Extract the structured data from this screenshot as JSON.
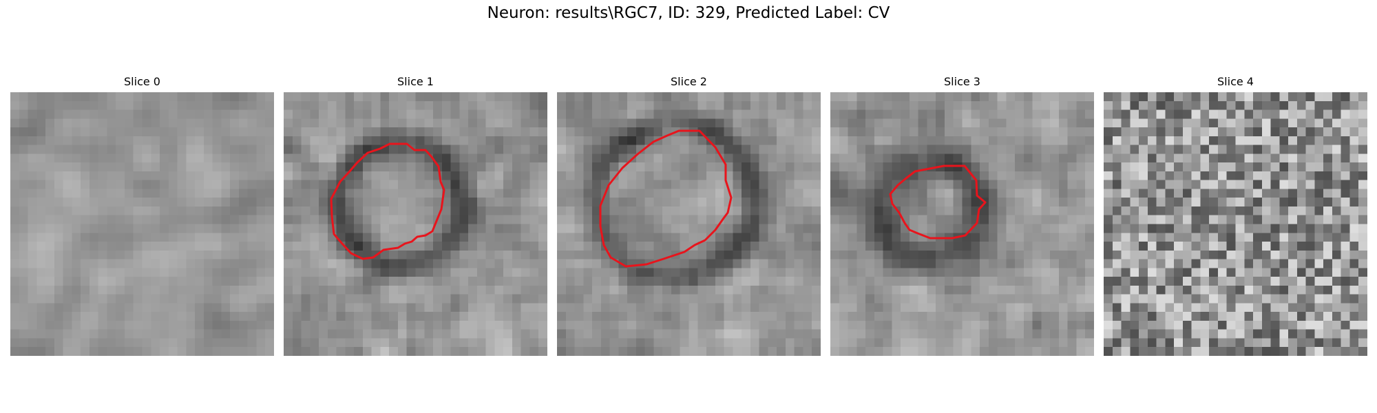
{
  "figure": {
    "title": "Neuron: results\\RGC7, ID: 329, Predicted Label: CV"
  },
  "colors": {
    "contour": "#e8141c",
    "background": "#ffffff"
  },
  "panels": [
    {
      "title": "Slice 0",
      "has_contour": false
    },
    {
      "title": "Slice 1",
      "has_contour": true
    },
    {
      "title": "Slice 2",
      "has_contour": true
    },
    {
      "title": "Slice 3",
      "has_contour": true
    },
    {
      "title": "Slice 4",
      "has_contour": false
    }
  ]
}
